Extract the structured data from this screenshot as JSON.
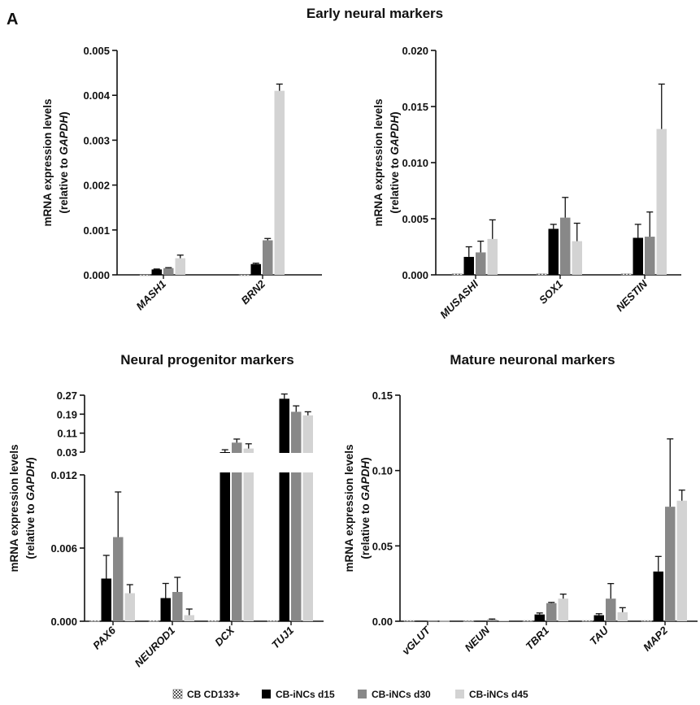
{
  "panel_letter": "A",
  "colors": {
    "CB CD133+": "#e6e6e6",
    "CB-iNCs d15": "#000000",
    "CB-iNCs d30": "#888888",
    "CB-iNCs d45": "#d3d3d3"
  },
  "legend": [
    "CB CD133+",
    "CB-iNCs d15",
    "CB-iNCs d30",
    "CB-iNCs d45"
  ],
  "ylabel": {
    "line1": "mRNA expression levels",
    "line2_prefix": "(relative to ",
    "line2_gene": "GAPDH",
    "line2_suffix": ")"
  },
  "chart_data": [
    {
      "type": "bar",
      "title": "Early neural markers",
      "ylabel": "mRNA expression levels (relative to GAPDH)",
      "ylim": [
        0,
        0.005
      ],
      "ticks": [
        "0.000",
        "0.001",
        "0.002",
        "0.003",
        "0.004",
        "0.005"
      ],
      "categories": [
        "MASH1",
        "BRN2"
      ],
      "series": [
        {
          "name": "CB CD133+",
          "values": [
            0,
            0
          ],
          "errors": [
            0,
            0
          ]
        },
        {
          "name": "CB-iNCs d15",
          "values": [
            0.00012,
            0.00024
          ],
          "errors": [
            1e-05,
            2e-05
          ]
        },
        {
          "name": "CB-iNCs d30",
          "values": [
            0.00015,
            0.00077
          ],
          "errors": [
            1e-05,
            4e-05
          ]
        },
        {
          "name": "CB-iNCs d45",
          "values": [
            0.00037,
            0.0041
          ],
          "errors": [
            7e-05,
            0.00015
          ]
        }
      ]
    },
    {
      "type": "bar",
      "title": "",
      "ylabel": "mRNA expression levels (relative to GAPDH)",
      "ylim": [
        0,
        0.02
      ],
      "ticks": [
        "0.000",
        "0.005",
        "0.010",
        "0.015",
        "0.020"
      ],
      "categories": [
        "MUSASHI",
        "SOX1",
        "NESTIN"
      ],
      "series": [
        {
          "name": "CB CD133+",
          "values": [
            0.0001,
            0.0001,
            0.0001
          ],
          "errors": [
            0,
            0,
            0
          ]
        },
        {
          "name": "CB-iNCs d15",
          "values": [
            0.0016,
            0.0041,
            0.0033
          ],
          "errors": [
            0.0009,
            0.0004,
            0.0012
          ]
        },
        {
          "name": "CB-iNCs d30",
          "values": [
            0.002,
            0.0051,
            0.0034
          ],
          "errors": [
            0.001,
            0.0018,
            0.0022
          ]
        },
        {
          "name": "CB-iNCs d45",
          "values": [
            0.0032,
            0.003,
            0.013
          ],
          "errors": [
            0.0017,
            0.0016,
            0.004
          ]
        }
      ]
    },
    {
      "type": "bar",
      "title": "Neural progenitor markers",
      "ylabel": "mRNA expression levels (relative to GAPDH)",
      "ylim_lower": [
        0,
        0.012
      ],
      "ylim_upper": [
        0.03,
        0.27
      ],
      "ticks_lower": [
        "0.000",
        "0.006",
        "0.012"
      ],
      "ticks_upper": [
        "0.03",
        "0.11",
        "0.19",
        "0.27"
      ],
      "categories": [
        "PAX6",
        "NEUROD1",
        "DCX",
        "TUJ1"
      ],
      "series": [
        {
          "name": "CB CD133+",
          "values": [
            5e-05,
            5e-05,
            5e-05,
            5e-05
          ],
          "errors": [
            0,
            0,
            0,
            0
          ]
        },
        {
          "name": "CB-iNCs d15",
          "values": [
            0.0035,
            0.0019,
            0.03,
            0.255
          ],
          "errors": [
            0.0019,
            0.0012,
            0.01,
            0.02
          ]
        },
        {
          "name": "CB-iNCs d30",
          "values": [
            0.0069,
            0.0024,
            0.07,
            0.2
          ],
          "errors": [
            0.0037,
            0.0012,
            0.015,
            0.025
          ]
        },
        {
          "name": "CB-iNCs d45",
          "values": [
            0.0023,
            0.0005,
            0.045,
            0.185
          ],
          "errors": [
            0.0007,
            0.0005,
            0.02,
            0.015
          ]
        }
      ]
    },
    {
      "type": "bar",
      "title": "Mature neuronal markers",
      "ylabel": "mRNA expression levels (relative to GAPDH)",
      "ylim": [
        0,
        0.15
      ],
      "ticks": [
        "0.00",
        "0.05",
        "0.10",
        "0.15"
      ],
      "categories": [
        "vGLUT",
        "NEUN",
        "TBR1",
        "TAU",
        "MAP2"
      ],
      "series": [
        {
          "name": "CB CD133+",
          "values": [
            0.0005,
            0.0003,
            0.0005,
            0.0005,
            0.0005
          ],
          "errors": [
            0,
            0,
            0,
            0,
            0
          ]
        },
        {
          "name": "CB-iNCs d15",
          "values": [
            0.0003,
            0.0003,
            0.0045,
            0.004,
            0.033
          ],
          "errors": [
            0,
            0,
            0.001,
            0.001,
            0.01
          ]
        },
        {
          "name": "CB-iNCs d30",
          "values": [
            0.0003,
            0.001,
            0.012,
            0.015,
            0.076
          ],
          "errors": [
            0,
            0.0005,
            0.0005,
            0.01,
            0.045
          ]
        },
        {
          "name": "CB-iNCs d45",
          "values": [
            0.0003,
            0.0005,
            0.015,
            0.006,
            0.08
          ],
          "errors": [
            0,
            0,
            0.003,
            0.003,
            0.007
          ]
        }
      ]
    }
  ]
}
